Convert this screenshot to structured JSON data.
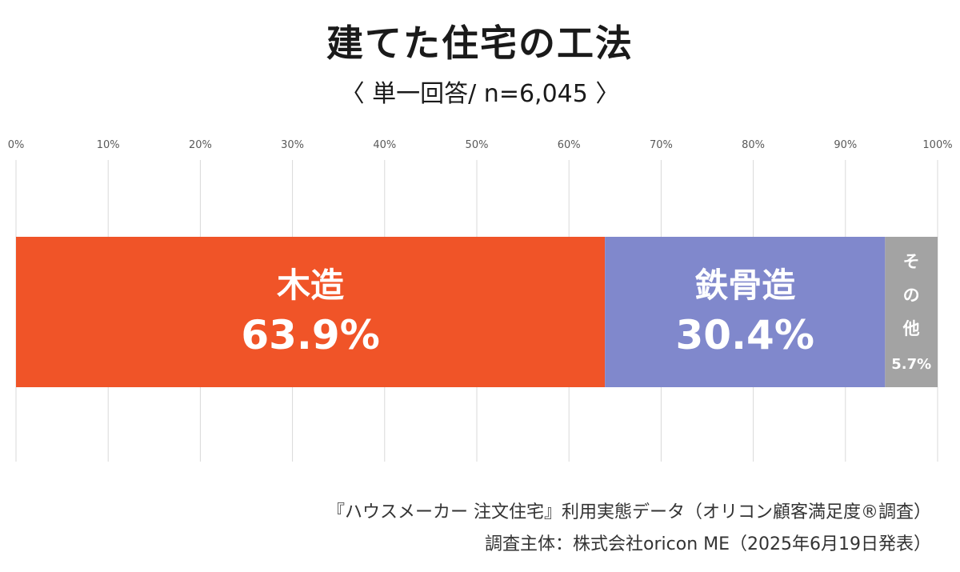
{
  "title": "建てた住宅の工法",
  "subtitle": "〈 単一回答/ n=6,045 〉",
  "footer": {
    "source": "『ハウスメーカー 注文住宅』利用実態データ（オリコン顧客満足度®調査）",
    "publisher": "調査主体：株式会社oricon ME（2025年6月19日発表）"
  },
  "chart_data": {
    "type": "bar",
    "orientation": "horizontal",
    "stacked": true,
    "unit": "%",
    "xlim": [
      0,
      100
    ],
    "xticks": [
      "0%",
      "10%",
      "20%",
      "30%",
      "40%",
      "50%",
      "60%",
      "70%",
      "80%",
      "90%",
      "100%"
    ],
    "grid": true,
    "series": [
      {
        "name": "木造",
        "value": 63.9,
        "label": "63.9%",
        "color": "#f05428"
      },
      {
        "name": "鉄骨造",
        "value": 30.4,
        "label": "30.4%",
        "color": "#8088cc"
      },
      {
        "name": "その他",
        "value": 5.7,
        "label": "5.7%",
        "color": "#a3a3a3"
      }
    ]
  }
}
